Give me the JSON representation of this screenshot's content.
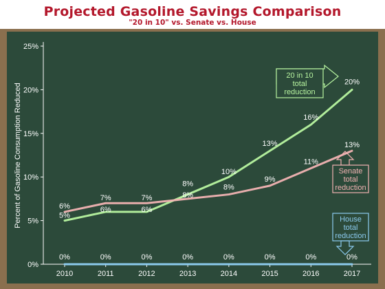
{
  "header": {
    "title": "Projected Gasoline Savings Comparison",
    "subtitle": "\"20 in 10\" vs. Senate vs. House"
  },
  "colors": {
    "board": "#2c4a3a",
    "frame": "#8a6f4e",
    "title": "#b3172b",
    "series_20in10": "#b8f5a0",
    "series_senate": "#f2b3b3",
    "series_house": "#8ccbf0",
    "axis": "#ffffff"
  },
  "chart_data": {
    "type": "line",
    "title": "Projected Gasoline Savings Comparison",
    "subtitle": "\"20 in 10\" vs. Senate vs. House",
    "xlabel": "",
    "ylabel": "Percent of Gasoline Consumption Reduced",
    "x": [
      "2010",
      "2011",
      "2012",
      "2013",
      "2014",
      "2015",
      "2016",
      "2017"
    ],
    "ylim": [
      0,
      25
    ],
    "yticks": [
      "0%",
      "5%",
      "10%",
      "15%",
      "20%",
      "25%"
    ],
    "grid": false,
    "series": [
      {
        "key": "20in10",
        "values": [
          5,
          6,
          6,
          8,
          10,
          13,
          16,
          20
        ],
        "labels": [
          "5%",
          "6%",
          "6%",
          "8%",
          "10%",
          "13%",
          "16%",
          "20%"
        ],
        "callout": [
          "20 in 10",
          "total",
          "reduction"
        ]
      },
      {
        "key": "senate",
        "values": [
          6,
          7,
          7,
          7.5,
          8,
          9,
          11,
          13
        ],
        "labels": [
          "6%",
          "7%",
          "7%",
          "8%",
          "8%",
          "9%",
          "11%",
          "13%"
        ],
        "callout": [
          "Senate",
          "total",
          "reduction"
        ]
      },
      {
        "key": "house",
        "values": [
          0,
          0,
          0,
          0,
          0,
          0,
          0,
          0
        ],
        "labels": [
          "0%",
          "0%",
          "0%",
          "0%",
          "0%",
          "0%",
          "0%",
          "0%"
        ],
        "callout": [
          "House",
          "total",
          "reduction"
        ]
      }
    ]
  }
}
